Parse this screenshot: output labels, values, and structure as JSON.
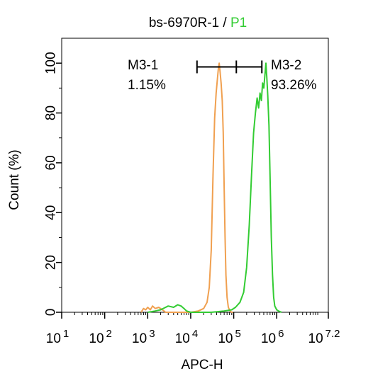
{
  "chart_data": {
    "type": "line",
    "title_main": "bs-6970R-1 / ",
    "title_gate": "P1",
    "xlabel": "APC-H",
    "ylabel": "Count  (%)",
    "x_scale": "log",
    "xlim": [
      10,
      15848932
    ],
    "ylim": [
      0,
      110
    ],
    "x_ticks": [
      {
        "value": 10,
        "base": "10",
        "exp": "1"
      },
      {
        "value": 100,
        "base": "10",
        "exp": "2"
      },
      {
        "value": 1000,
        "base": "10",
        "exp": "3"
      },
      {
        "value": 10000,
        "base": "10",
        "exp": "4"
      },
      {
        "value": 100000,
        "base": "10",
        "exp": "5"
      },
      {
        "value": 1000000,
        "base": "10",
        "exp": "6"
      },
      {
        "value": 15848932,
        "base": "10",
        "exp": "7.2"
      }
    ],
    "y_ticks": [
      0,
      20,
      40,
      60,
      80,
      100
    ],
    "grid": false,
    "series": [
      {
        "color": "#f0a050",
        "points": [
          [
            700,
            0
          ],
          [
            800,
            1.5
          ],
          [
            900,
            1
          ],
          [
            1000,
            2
          ],
          [
            1150,
            1
          ],
          [
            1300,
            2.5
          ],
          [
            1500,
            1.5
          ],
          [
            1800,
            2
          ],
          [
            2200,
            1
          ],
          [
            2600,
            0
          ],
          [
            3000,
            0
          ],
          [
            5000,
            0
          ],
          [
            10000,
            0
          ],
          [
            15000,
            0.5
          ],
          [
            20000,
            1.5
          ],
          [
            24000,
            4
          ],
          [
            27000,
            10
          ],
          [
            30000,
            25
          ],
          [
            33000,
            55
          ],
          [
            36000,
            78
          ],
          [
            39000,
            88
          ],
          [
            42000,
            94
          ],
          [
            44000,
            98
          ],
          [
            46000,
            100
          ],
          [
            48000,
            97
          ],
          [
            51000,
            92
          ],
          [
            54000,
            85
          ],
          [
            57000,
            72
          ],
          [
            60000,
            50
          ],
          [
            63000,
            30
          ],
          [
            66000,
            15
          ],
          [
            70000,
            6
          ],
          [
            75000,
            2
          ],
          [
            82000,
            0.5
          ],
          [
            90000,
            0
          ],
          [
            96000,
            0
          ]
        ]
      },
      {
        "color": "#33cc33",
        "points": [
          [
            1000,
            0
          ],
          [
            1500,
            0.5
          ],
          [
            2000,
            1
          ],
          [
            3000,
            2.5
          ],
          [
            4000,
            2
          ],
          [
            5000,
            3
          ],
          [
            6000,
            2.5
          ],
          [
            7000,
            1.5
          ],
          [
            8000,
            0.5
          ],
          [
            10000,
            0
          ],
          [
            30000,
            0
          ],
          [
            60000,
            0.5
          ],
          [
            90000,
            1
          ],
          [
            110000,
            2
          ],
          [
            140000,
            4
          ],
          [
            170000,
            8
          ],
          [
            200000,
            18
          ],
          [
            230000,
            35
          ],
          [
            260000,
            55
          ],
          [
            290000,
            72
          ],
          [
            320000,
            80
          ],
          [
            350000,
            86
          ],
          [
            380000,
            82
          ],
          [
            410000,
            88
          ],
          [
            440000,
            85
          ],
          [
            470000,
            92
          ],
          [
            500000,
            90
          ],
          [
            530000,
            95
          ],
          [
            560000,
            100
          ],
          [
            590000,
            94
          ],
          [
            620000,
            87
          ],
          [
            660000,
            75
          ],
          [
            700000,
            55
          ],
          [
            750000,
            30
          ],
          [
            800000,
            15
          ],
          [
            850000,
            6
          ],
          [
            900000,
            2.5
          ],
          [
            1000000,
            1
          ],
          [
            1100000,
            0.5
          ],
          [
            1300000,
            0
          ]
        ]
      }
    ],
    "marker": {
      "x_start": 14000,
      "x_end": 115000,
      "y": 98.5
    },
    "annotations": [
      {
        "name": "M3-1",
        "value": "1.15%"
      },
      {
        "name": "M3-2",
        "value": "93.26%"
      }
    ]
  }
}
